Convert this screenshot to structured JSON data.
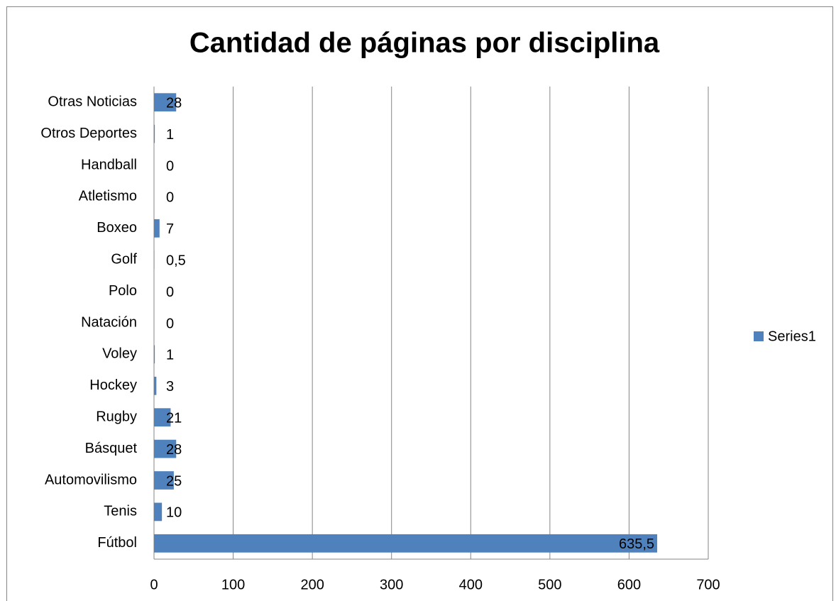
{
  "chart_data": {
    "type": "bar",
    "orientation": "horizontal",
    "title": "Cantidad de páginas por disciplina",
    "categories": [
      "Fútbol",
      "Tenis",
      "Automovilismo",
      "Básquet",
      "Rugby",
      "Hockey",
      "Voley",
      "Natación",
      "Polo",
      "Golf",
      "Boxeo",
      "Atletismo",
      "Handball",
      "Otros Deportes",
      "Otras Noticias"
    ],
    "series": [
      {
        "name": "Series1",
        "color": "#4f81bd",
        "values": [
          635.5,
          10,
          25,
          28,
          21,
          3,
          1,
          0,
          0,
          0.5,
          7,
          0,
          0,
          1,
          28
        ],
        "value_labels": [
          "635,5",
          "10",
          "25",
          "28",
          "21",
          "3",
          "1",
          "0",
          "0",
          "0,5",
          "7",
          "0",
          "0",
          "1",
          "28"
        ]
      }
    ],
    "xlim": [
      0,
      700
    ],
    "xticks": [
      0,
      100,
      200,
      300,
      400,
      500,
      600,
      700
    ],
    "grid": true,
    "legend": "right"
  }
}
